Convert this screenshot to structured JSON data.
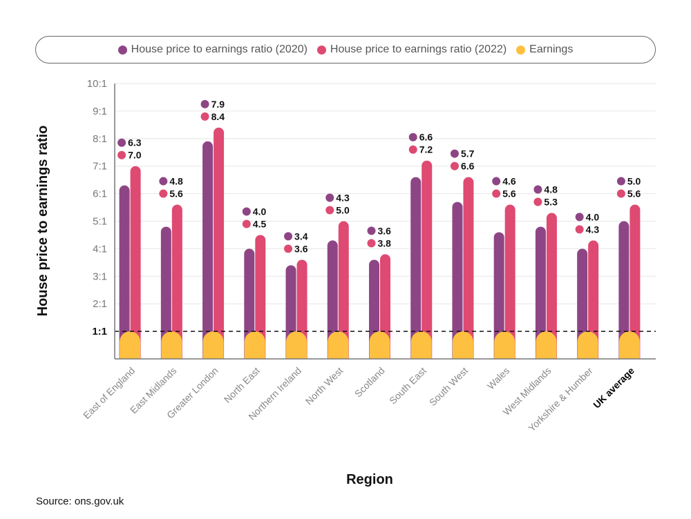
{
  "chart_data": {
    "type": "bar",
    "title": "",
    "xlabel": "Region",
    "ylabel": "House price to earnings ratio",
    "ylim": [
      0,
      10
    ],
    "yticks": [
      "1:1",
      "2:1",
      "3:1",
      "4:1",
      "5:1",
      "6:1",
      "7:1",
      "8:1",
      "9:1",
      "10:1"
    ],
    "grid": true,
    "legend_position": "top",
    "reference_line": {
      "value": 1,
      "style": "dashed"
    },
    "categories": [
      "East of England",
      "East Midlands",
      "Greater London",
      "North East",
      "Northern Ireland",
      "North West",
      "Scotland",
      "South East",
      "South West",
      "Wales",
      "West Midlands",
      "Yorkshire & Humber",
      "UK average"
    ],
    "series": [
      {
        "name": "House price to earnings ratio (2020)",
        "color": "#8e4585",
        "values": [
          6.3,
          4.8,
          7.9,
          4.0,
          3.4,
          4.3,
          3.6,
          6.6,
          5.7,
          4.6,
          4.8,
          4.0,
          5.0
        ],
        "labels": [
          "6.3",
          "4.8",
          "7.9",
          "4.0",
          "3.4",
          "4.3",
          "3.6",
          "6.6",
          "5.7",
          "4.6",
          "4.8",
          "4.0",
          "5.0"
        ]
      },
      {
        "name": "House price to earnings ratio (2022)",
        "color": "#de4a72",
        "values": [
          7.0,
          5.6,
          8.4,
          4.5,
          3.6,
          5.0,
          3.8,
          7.2,
          6.6,
          5.6,
          5.3,
          4.3,
          5.6
        ],
        "labels": [
          "7.0",
          "5.6",
          "8.4",
          "4.5",
          "3.6",
          "5.0",
          "3.8",
          "7.2",
          "6.6",
          "5.6",
          "5.3",
          "4.3",
          "5.6"
        ]
      },
      {
        "name": "Earnings",
        "color": "#fdc040",
        "values": [
          1,
          1,
          1,
          1,
          1,
          1,
          1,
          1,
          1,
          1,
          1,
          1,
          1
        ]
      }
    ],
    "highlight_category": "UK average"
  },
  "source": "Source: ons.gov.uk"
}
